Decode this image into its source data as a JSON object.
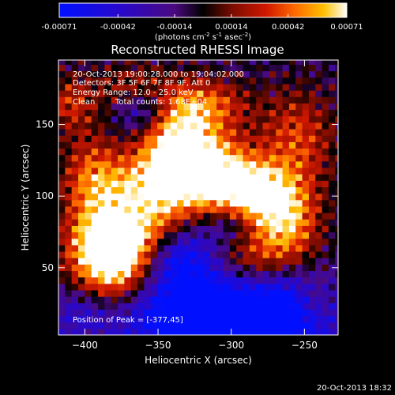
{
  "chart_data": {
    "type": "heatmap",
    "title": "Reconstructed RHESSI Image",
    "xlabel": "Heliocentric X (arcsec)",
    "ylabel": "Heliocentric Y (arcsec)",
    "x_ticks": [
      -400,
      -350,
      -300,
      -250
    ],
    "y_ticks": [
      50,
      100,
      150
    ],
    "xlim": [
      -418,
      -227
    ],
    "ylim": [
      3,
      195
    ],
    "colorbar": {
      "label_prefix": "(photons cm",
      "label_mid1": " s",
      "label_mid2": " asec",
      "label_suffix": ")",
      "label_exp1": "-2",
      "label_exp2": "-1",
      "label_exp3": "-2",
      "ticks": [
        "-0.00071",
        "-0.00042",
        "-0.00014",
        "0.00014",
        "0.00042",
        "0.00071"
      ],
      "range": [
        -0.00071,
        0.00071
      ]
    },
    "annotations": [
      "20-Oct-2013 19:00:28.000 to 19:04:02.000",
      "Detectors: 3F 5F 6F 7F 8F 9F, Att 0",
      "Energy Range: 12.0 - 25.0 keV",
      "Clean",
      "Total counts: 1.68E+04"
    ],
    "peak_label": "Position of Peak = [-377,45]",
    "peak_position": [
      -377,
      45
    ],
    "grid": false
  },
  "footer": {
    "timestamp": "20-Oct-2013 18:32"
  }
}
